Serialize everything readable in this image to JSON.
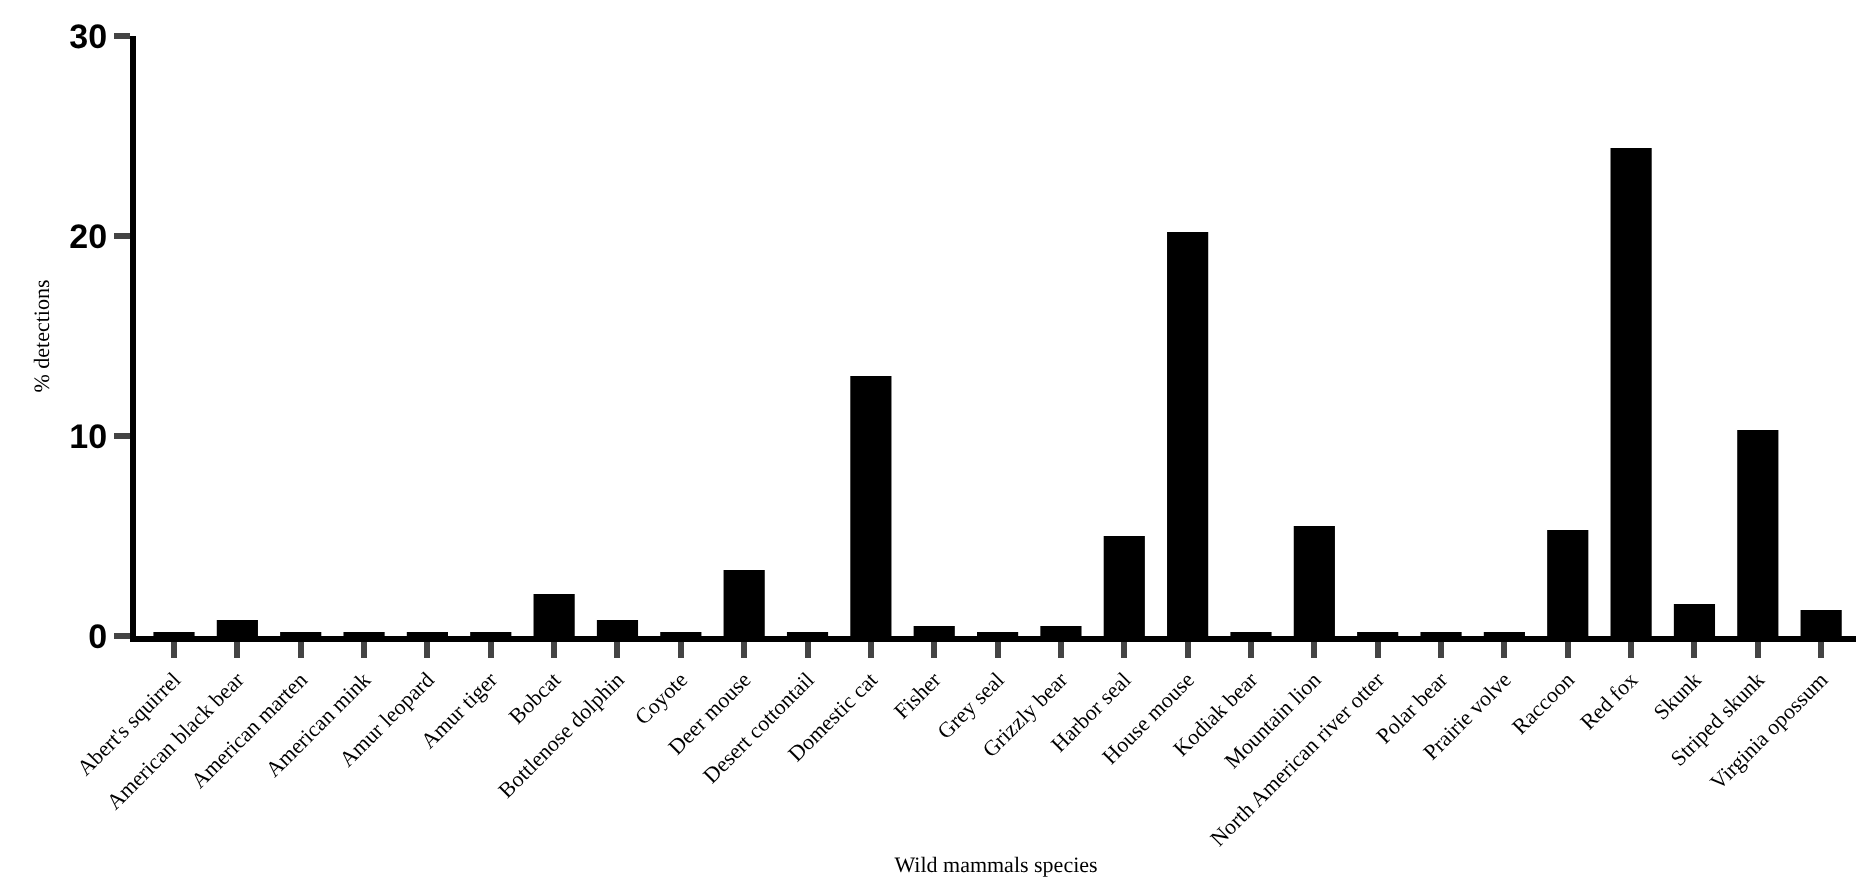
{
  "chart_data": {
    "type": "bar",
    "xlabel": "Wild mammals species",
    "ylabel": "% detections",
    "categories": [
      "Abert's squirrel",
      "American black bear",
      "American marten",
      "American mink",
      "Amur leopard",
      "Amur tiger",
      "Bobcat",
      "Bottlenose dolphin",
      "Coyote",
      "Deer mouse",
      "Desert cottontail",
      "Domestic cat",
      "Fisher",
      "Grey seal",
      "Grizzly bear",
      "Harbor seal",
      "House mouse",
      "Kodiak bear",
      "Mountain lion",
      "North American river otter",
      "Polar bear",
      "Prairie volve",
      "Raccoon",
      "Red fox",
      "Skunk",
      "Striped skunk",
      "Virginia opossum"
    ],
    "values": [
      0.2,
      0.8,
      0.2,
      0.2,
      0.2,
      0.2,
      2.1,
      0.8,
      0.2,
      3.3,
      0.2,
      13.0,
      0.5,
      0.2,
      0.5,
      5.0,
      20.2,
      0.2,
      5.5,
      0.2,
      0.2,
      0.2,
      5.3,
      24.4,
      1.6,
      10.3,
      1.3
    ],
    "color": "#000000",
    "ylim": [
      0,
      30
    ],
    "yticks": [
      0,
      10,
      20,
      30
    ]
  }
}
